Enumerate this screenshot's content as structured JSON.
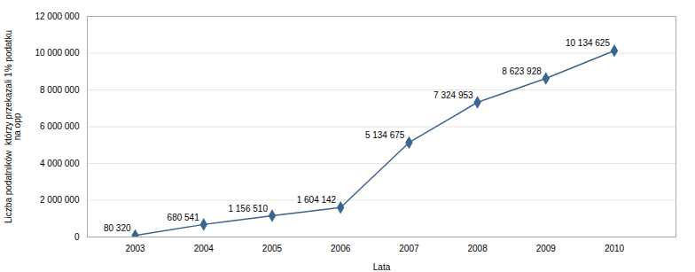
{
  "chart_data": {
    "type": "line",
    "x": [
      2003,
      2004,
      2005,
      2006,
      2007,
      2008,
      2009,
      2010
    ],
    "values": [
      80320,
      680541,
      1156510,
      1604142,
      5134675,
      7324953,
      8623928,
      10134625
    ],
    "value_labels": [
      "80 320",
      "680 541",
      "1 156 510",
      "1 604 142",
      "5 134 675",
      "7 324 953",
      "8 623 928",
      "10 134 625"
    ],
    "data_labels": true,
    "xlabel": "Lata",
    "ylabel": "Liczba podatników  którzy przekazali 1% podatku\nna opp",
    "xlim": [
      2002.3,
      2010.9
    ],
    "xticks": [
      2003,
      2004,
      2005,
      2006,
      2007,
      2008,
      2009,
      2010
    ],
    "ylim": [
      0,
      12000000
    ],
    "yticks": [
      0,
      {
        "value": 2000000,
        "label": "2 000 000"
      },
      {
        "value": 4000000,
        "label": "4 000 000"
      },
      {
        "value": 6000000,
        "label": "6 000 000"
      },
      {
        "value": 8000000,
        "label": "8 000 000"
      },
      {
        "value": 10000000,
        "label": "10 000 000"
      },
      {
        "value": 12000000,
        "label": "12 000 000"
      }
    ],
    "grid": true,
    "color": "#3B6591",
    "marker": "diamond"
  }
}
